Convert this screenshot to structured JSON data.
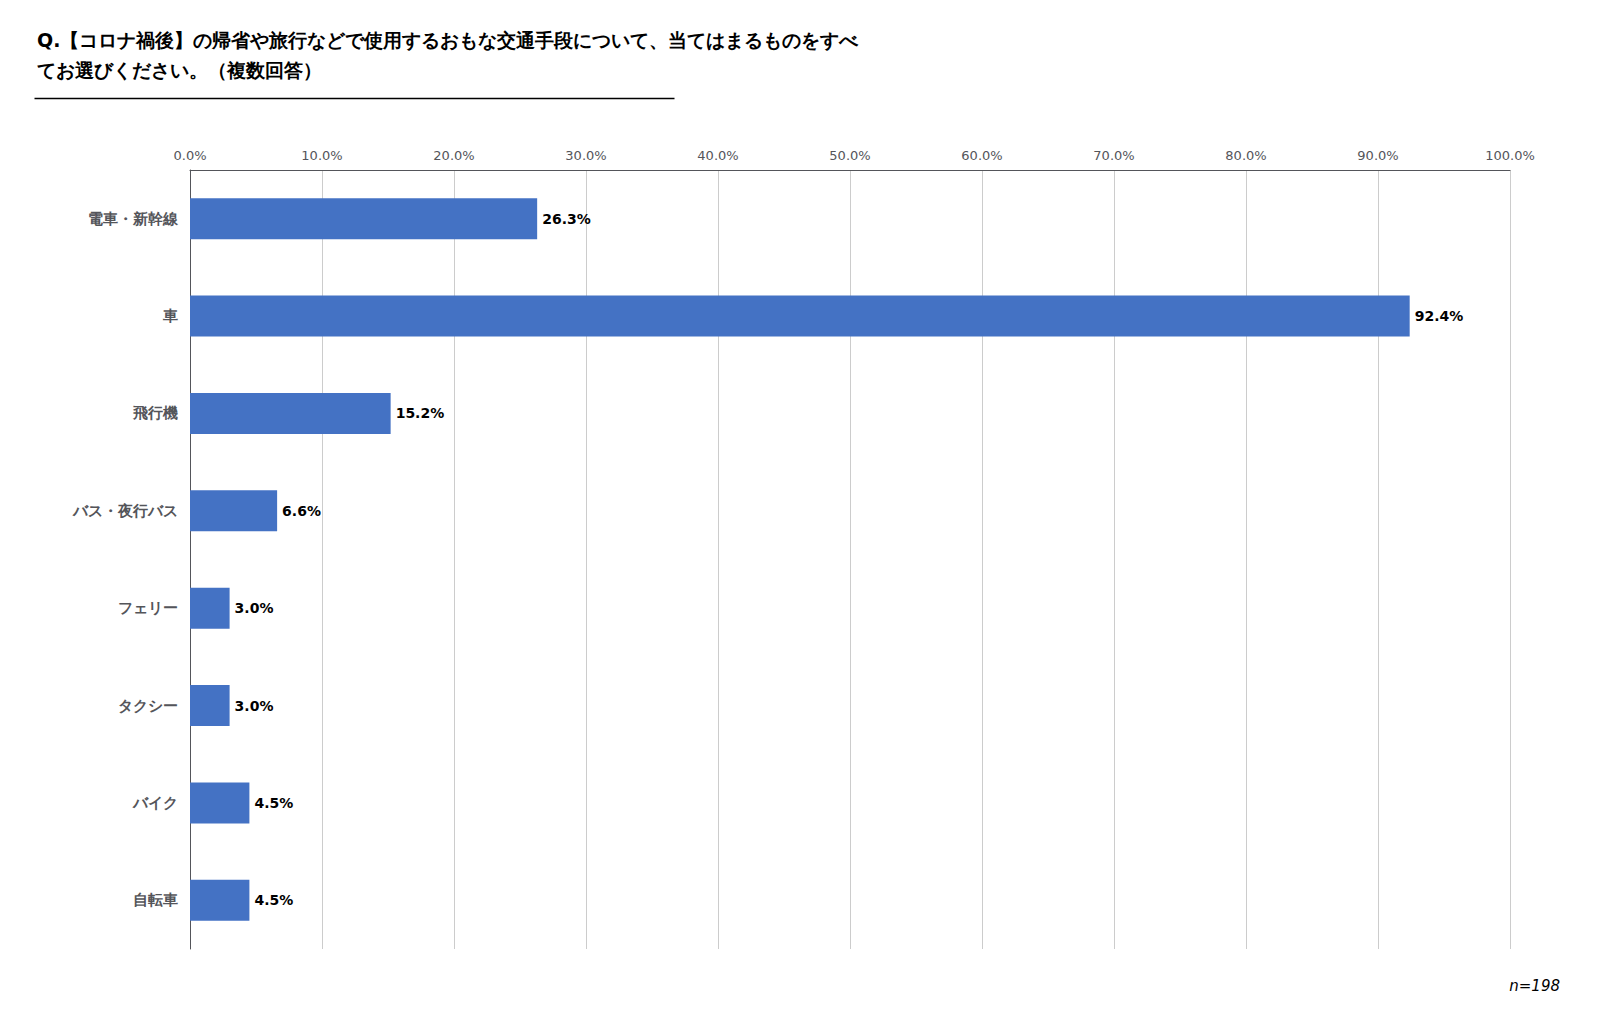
{
  "chart_data": {
    "type": "bar",
    "orientation": "horizontal",
    "title": "Q.【コロナ禍後】の帰省や旅行などで使用するおもな交通手段について、当てはまるものをすべ\nてお選びください。（複数回答）",
    "categories": [
      "電車・新幹線",
      "車",
      "飛行機",
      "バス・夜行バス",
      "フェリー",
      "タクシー",
      "バイク",
      "自転車"
    ],
    "values": [
      26.3,
      92.4,
      15.2,
      6.6,
      3.0,
      3.0,
      4.5,
      4.5
    ],
    "value_labels": [
      "26.3%",
      "92.4%",
      "15.2%",
      "6.6%",
      "3.0%",
      "3.0%",
      "4.5%",
      "4.5%"
    ],
    "data_labels": true,
    "color": "#4472C4",
    "xlim": [
      0,
      100
    ],
    "xticks": [
      {
        "value": 0,
        "label": "0.0%"
      },
      {
        "value": 10,
        "label": "10.0%"
      },
      {
        "value": 20,
        "label": "20.0%"
      },
      {
        "value": 30,
        "label": "30.0%"
      },
      {
        "value": 40,
        "label": "40.0%"
      },
      {
        "value": 50,
        "label": "50.0%"
      },
      {
        "value": 60,
        "label": "60.0%"
      },
      {
        "value": 70,
        "label": "70.0%"
      },
      {
        "value": 80,
        "label": "80.0%"
      },
      {
        "value": 90,
        "label": "90.0%"
      },
      {
        "value": 100,
        "label": "100.0%"
      }
    ],
    "grid": true,
    "annotations": [
      {
        "text": "n=198"
      }
    ]
  }
}
